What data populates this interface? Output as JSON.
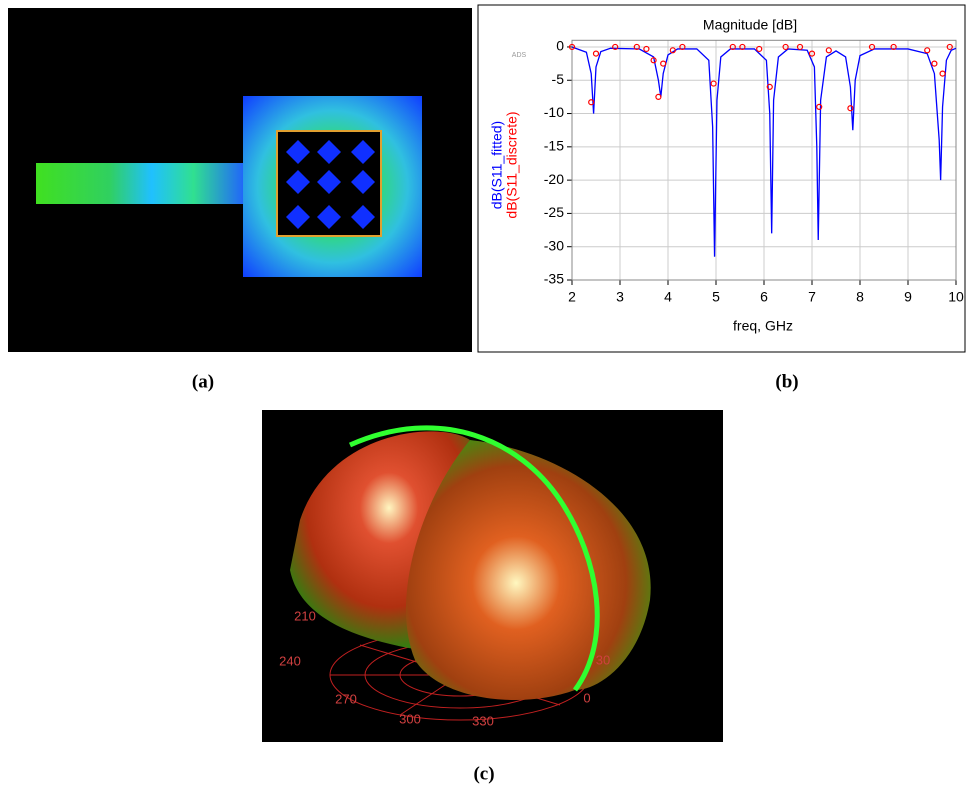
{
  "chart_data": {
    "type": "line",
    "title": "Magnitude [dB]",
    "x_label": "freq, GHz",
    "watermark": "ADS",
    "xlim": [
      2,
      10
    ],
    "xticks": [
      2,
      3,
      4,
      5,
      6,
      7,
      8,
      9,
      10
    ],
    "ylim": [
      -35,
      1
    ],
    "yticks": [
      0,
      -5,
      -10,
      -15,
      -20,
      -25,
      -30,
      -35
    ],
    "grid": true,
    "series": [
      {
        "name": "dB(S11_fitted)",
        "color": "#0000ff",
        "style": "line",
        "x": [
          2.0,
          2.3,
          2.4,
          2.45,
          2.5,
          2.6,
          2.8,
          3.4,
          3.7,
          3.8,
          3.85,
          3.9,
          4.0,
          4.2,
          4.6,
          4.85,
          4.93,
          4.97,
          5.02,
          5.1,
          5.3,
          5.8,
          6.05,
          6.12,
          6.16,
          6.2,
          6.3,
          6.5,
          6.9,
          7.05,
          7.1,
          7.13,
          7.18,
          7.3,
          7.5,
          7.7,
          7.8,
          7.85,
          7.9,
          8.0,
          8.3,
          9.0,
          9.4,
          9.55,
          9.65,
          9.68,
          9.72,
          9.8,
          9.9,
          10.0
        ],
        "values": [
          0,
          -0.8,
          -4,
          -10,
          -3,
          -0.7,
          -0.2,
          -0.3,
          -1.5,
          -5,
          -7.5,
          -4,
          -1.2,
          -0.3,
          -0.3,
          -2,
          -12,
          -31.5,
          -8,
          -1.5,
          -0.3,
          -0.3,
          -2,
          -10,
          -28,
          -8,
          -1.5,
          -0.3,
          -0.5,
          -3,
          -15,
          -29,
          -8,
          -1.5,
          -0.6,
          -1.5,
          -6,
          -12.5,
          -5,
          -1.3,
          -0.3,
          -0.3,
          -1,
          -4,
          -14,
          -20,
          -9,
          -2,
          -0.5,
          -0.2
        ]
      },
      {
        "name": "dB(S11_discrete)",
        "color": "#ff0000",
        "style": "markers",
        "x": [
          2.0,
          2.4,
          2.5,
          2.9,
          3.35,
          3.55,
          3.7,
          3.8,
          3.9,
          4.1,
          4.3,
          4.95,
          5.35,
          5.55,
          5.9,
          6.12,
          6.45,
          6.75,
          7.0,
          7.15,
          7.35,
          7.8,
          8.25,
          8.7,
          9.4,
          9.55,
          9.72,
          9.87
        ],
        "values": [
          0,
          -8.3,
          -1,
          0,
          0,
          -0.3,
          -2,
          -7.5,
          -2.5,
          -0.5,
          0,
          -5.5,
          0,
          0,
          -0.3,
          -6,
          0,
          0,
          -1,
          -9,
          -0.5,
          -9.2,
          0,
          0,
          -0.5,
          -2.5,
          -4,
          0
        ]
      }
    ]
  },
  "panel_labels": [
    "(a)",
    "(b)",
    "(c)"
  ],
  "polar_labels": [
    210,
    240,
    270,
    300,
    330,
    0,
    30
  ]
}
